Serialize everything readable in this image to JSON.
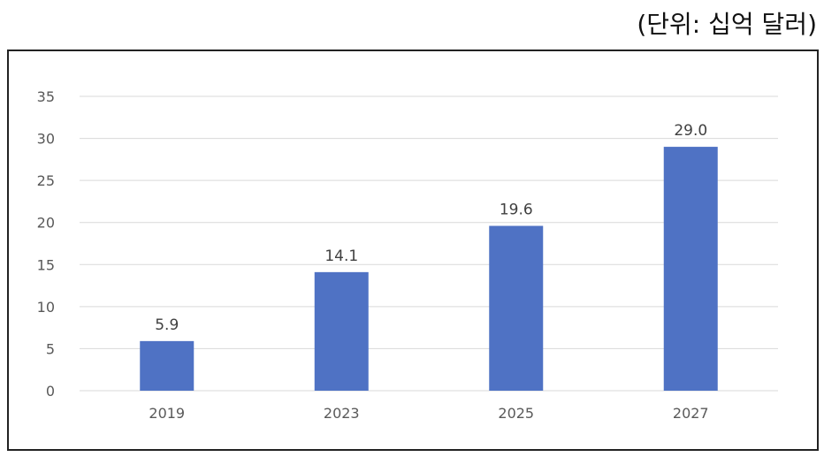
{
  "unit_label": "(단위: 십억 달러)",
  "colors": {
    "bar": "#4F72C4",
    "grid": "#D9D9D9",
    "axis_text": "#595959",
    "label_text": "#404040"
  },
  "chart_data": {
    "type": "bar",
    "categories": [
      "2019",
      "2023",
      "2025",
      "2027"
    ],
    "values": [
      5.9,
      14.1,
      19.6,
      29.0
    ],
    "value_labels": [
      "5.9",
      "14.1",
      "19.6",
      "29.0"
    ],
    "title": "",
    "xlabel": "",
    "ylabel": "",
    "ylim": [
      0,
      35
    ],
    "yticks": [
      0,
      5,
      10,
      15,
      20,
      25,
      30,
      35
    ],
    "grid": true,
    "legend": "none"
  }
}
